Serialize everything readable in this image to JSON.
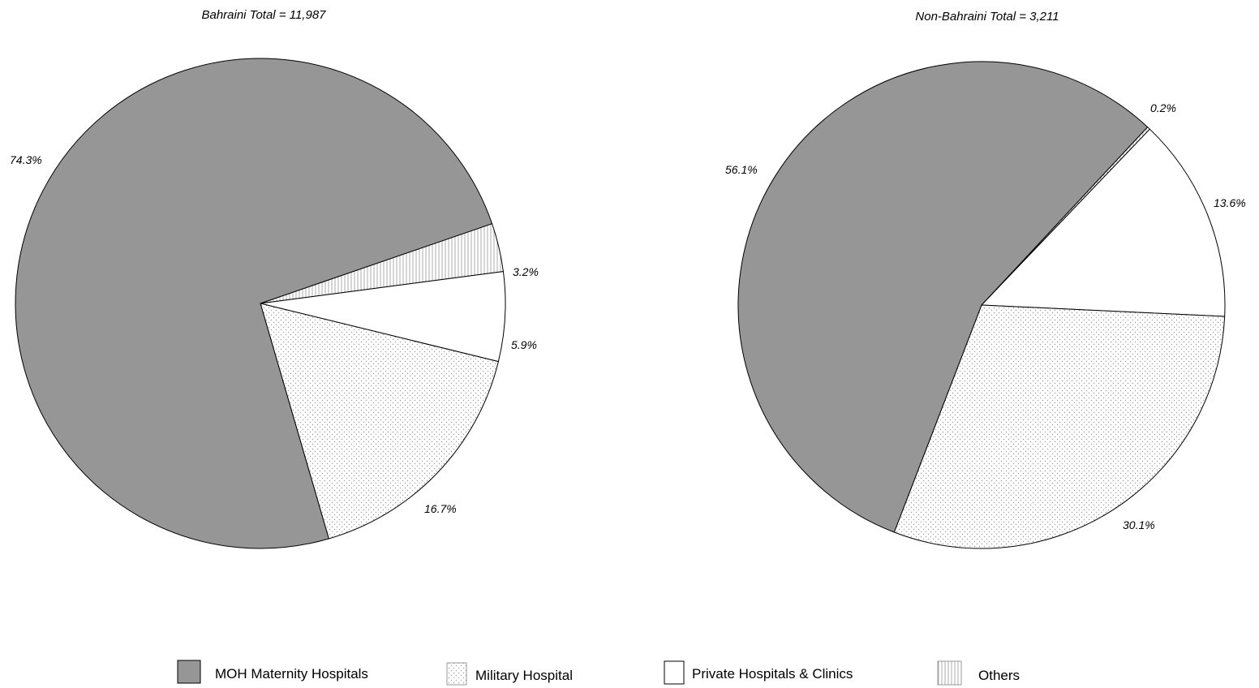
{
  "legend": [
    {
      "label": "MOH Maternity Hospitals",
      "pattern": "solid-gray"
    },
    {
      "label": "Military Hospital",
      "pattern": "dots"
    },
    {
      "label": "Private Hospitals & Clinics",
      "pattern": "none"
    },
    {
      "label": "Others",
      "pattern": "vertical-lines"
    }
  ],
  "colors": {
    "moh_fill": "#969696",
    "background": "#ffffff",
    "stroke": "#000000",
    "pattern_ink": "#9a9a9a"
  },
  "chart_data": [
    {
      "type": "pie",
      "title": "Bahraini Total = 11,987",
      "categories": [
        "MOH Maternity Hospitals",
        "Military Hospital",
        "Private Hospitals & Clinics",
        "Others"
      ],
      "values": [
        74.3,
        16.7,
        5.9,
        3.2
      ],
      "labels": [
        "74.3%",
        "16.7%",
        "5.9%",
        "3.2%"
      ]
    },
    {
      "type": "pie",
      "title": "Non-Bahraini Total = 3,211",
      "categories": [
        "MOH Maternity Hospitals",
        "Military Hospital",
        "Private Hospitals & Clinics",
        "Others"
      ],
      "values": [
        56.1,
        30.1,
        13.6,
        0.2
      ],
      "labels": [
        "56.1%",
        "30.1%",
        "13.6%",
        "0.2%"
      ]
    }
  ]
}
